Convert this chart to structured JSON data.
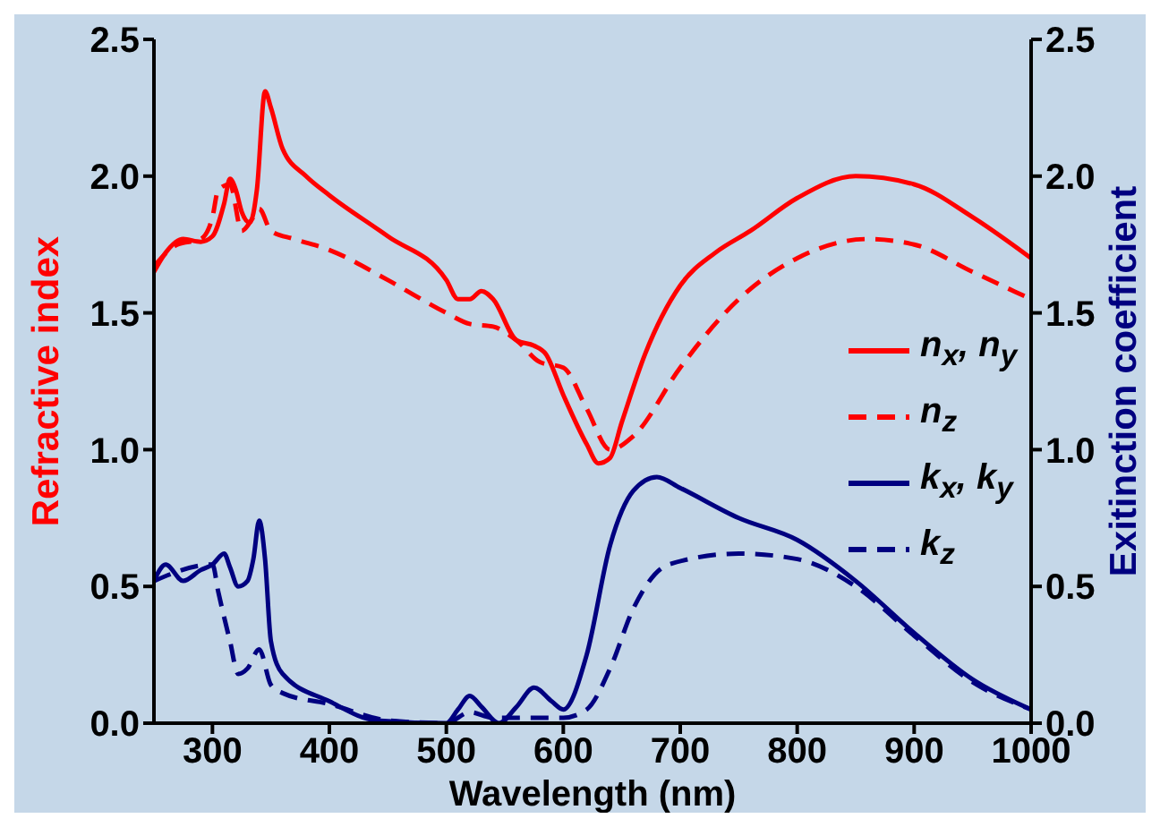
{
  "chart_data": {
    "type": "line",
    "xlabel": "Wavelength (nm)",
    "ylabel": "Refractive index",
    "y2label": "Exitinction coefficient",
    "xlim": [
      250,
      1000
    ],
    "xticks": [
      300,
      400,
      500,
      600,
      700,
      800,
      900,
      1000
    ],
    "ylim": [
      0,
      2.5
    ],
    "yticks": [
      {
        "value": 0,
        "label": "0.0"
      },
      {
        "value": 0.5,
        "label": "0.5"
      },
      {
        "value": 1,
        "label": "1.0"
      },
      {
        "value": 1.5,
        "label": "1.5"
      },
      {
        "value": 2,
        "label": "2.0"
      },
      {
        "value": 2.5,
        "label": "2.5"
      }
    ],
    "y2lim": [
      0,
      2.5
    ],
    "y2ticks": [
      {
        "value": 0,
        "label": "0.0"
      },
      {
        "value": 0.5,
        "label": "0.5"
      },
      {
        "value": 1,
        "label": "1.0"
      },
      {
        "value": 1.5,
        "label": "1.5"
      },
      {
        "value": 2,
        "label": "2.0"
      },
      {
        "value": 2.5,
        "label": "2.5"
      }
    ],
    "legend": "right",
    "grid": false,
    "marker": "none",
    "series": [
      {
        "name": "n$_{x}$, n$_{y}$",
        "color": "#ff0000",
        "line_style": "solid",
        "x": [
          250,
          260,
          275,
          290,
          300,
          310,
          315,
          320,
          325,
          332,
          338,
          345,
          350,
          360,
          380,
          400,
          450,
          500,
          510,
          520,
          530,
          540,
          560,
          575,
          585,
          600,
          620,
          630,
          640,
          650,
          670,
          700,
          730,
          760,
          800,
          850,
          900,
          950,
          1000
        ],
        "values": [
          1.65,
          1.72,
          1.77,
          1.76,
          1.78,
          1.9,
          1.99,
          1.95,
          1.87,
          1.83,
          1.95,
          2.31,
          2.25,
          2.1,
          2.0,
          1.93,
          1.78,
          1.62,
          1.55,
          1.55,
          1.58,
          1.55,
          1.4,
          1.38,
          1.35,
          1.2,
          1.02,
          0.95,
          0.97,
          1.1,
          1.35,
          1.6,
          1.72,
          1.8,
          1.92,
          2.0,
          1.97,
          1.85,
          1.7
        ]
      },
      {
        "name": "n$_{z}$",
        "color": "#ff0000",
        "line_style": "dashed",
        "x": [
          250,
          270,
          290,
          300,
          305,
          315,
          325,
          335,
          340,
          350,
          370,
          400,
          450,
          500,
          520,
          540,
          560,
          580,
          600,
          620,
          640,
          660,
          700,
          750,
          800,
          860,
          900,
          950,
          1000
        ],
        "values": [
          1.67,
          1.75,
          1.77,
          1.85,
          1.95,
          1.97,
          1.8,
          1.85,
          1.88,
          1.8,
          1.77,
          1.73,
          1.62,
          1.5,
          1.46,
          1.45,
          1.4,
          1.32,
          1.3,
          1.15,
          1.0,
          1.05,
          1.3,
          1.55,
          1.7,
          1.77,
          1.75,
          1.65,
          1.55
        ]
      },
      {
        "name": "k$_{x}$, k$_{y}$",
        "color": "#000080",
        "line_style": "solid",
        "axis": "y2",
        "x": [
          250,
          260,
          275,
          290,
          300,
          310,
          315,
          322,
          330,
          335,
          340,
          345,
          350,
          360,
          400,
          440,
          500,
          510,
          520,
          530,
          545,
          560,
          575,
          590,
          600,
          620,
          640,
          660,
          680,
          700,
          750,
          800,
          850,
          900,
          950,
          1000
        ],
        "values": [
          0.52,
          0.58,
          0.52,
          0.56,
          0.58,
          0.62,
          0.57,
          0.5,
          0.52,
          0.6,
          0.74,
          0.6,
          0.3,
          0.18,
          0.08,
          0.01,
          0.0,
          0.05,
          0.1,
          0.06,
          0.0,
          0.06,
          0.13,
          0.08,
          0.05,
          0.25,
          0.65,
          0.85,
          0.9,
          0.86,
          0.75,
          0.67,
          0.52,
          0.33,
          0.16,
          0.05
        ]
      },
      {
        "name": "k$_{z}$",
        "color": "#000080",
        "line_style": "dashed",
        "axis": "y2",
        "x": [
          250,
          300,
          305,
          315,
          322,
          330,
          340,
          350,
          360,
          400,
          450,
          500,
          520,
          540,
          600,
          620,
          640,
          660,
          690,
          750,
          800,
          850,
          900,
          950,
          1000
        ],
        "values": [
          0.52,
          0.58,
          0.48,
          0.3,
          0.18,
          0.2,
          0.27,
          0.14,
          0.11,
          0.07,
          0.01,
          0.0,
          0.04,
          0.02,
          0.02,
          0.05,
          0.2,
          0.42,
          0.58,
          0.62,
          0.6,
          0.5,
          0.32,
          0.15,
          0.05
        ]
      }
    ]
  }
}
